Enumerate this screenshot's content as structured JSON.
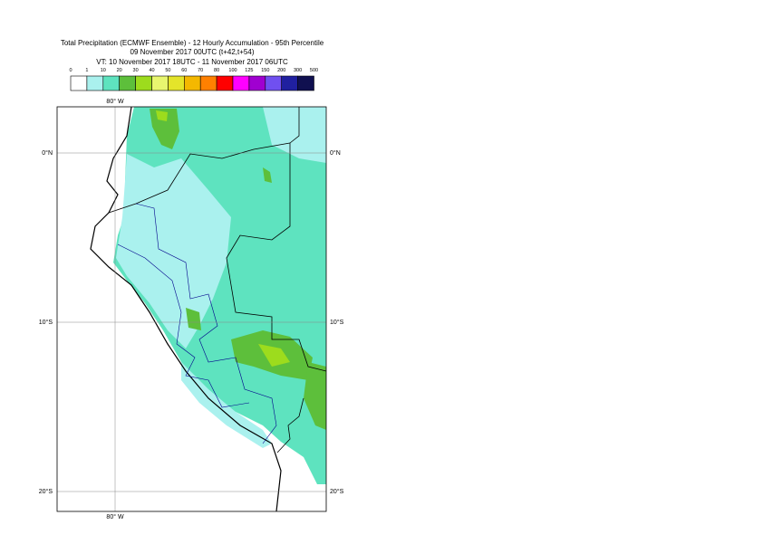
{
  "header": {
    "title": "Total Precipitation (ECMWF Ensemble) - 12 Hourly Accumulation - 95th Percentile",
    "base_time": "09 November 2017 00UTC (t+42,t+54)",
    "valid_time": "VT: 10 November 2017 18UTC - 11 November 2017 06UTC"
  },
  "legend": {
    "labels": [
      "0",
      "1",
      "10",
      "20",
      "30",
      "40",
      "50",
      "60",
      "70",
      "80",
      "100",
      "125",
      "150",
      "200",
      "300",
      "500"
    ],
    "colors": [
      "#ffffff",
      "#aaf1ee",
      "#5ee3bf",
      "#5dbf3b",
      "#9ddc1d",
      "#e8f66f",
      "#e4e42a",
      "#f4b800",
      "#ff8000",
      "#ff0000",
      "#ff00ff",
      "#a000d0",
      "#7050f0",
      "#2020a0",
      "#101050"
    ]
  },
  "map": {
    "lon_labels": [
      "80° W",
      "80° W"
    ],
    "lat_labels_left": [
      "0°N",
      "10°S",
      "20°S"
    ],
    "lat_labels_right": [
      "0°N",
      "10°S",
      "20°S"
    ]
  }
}
